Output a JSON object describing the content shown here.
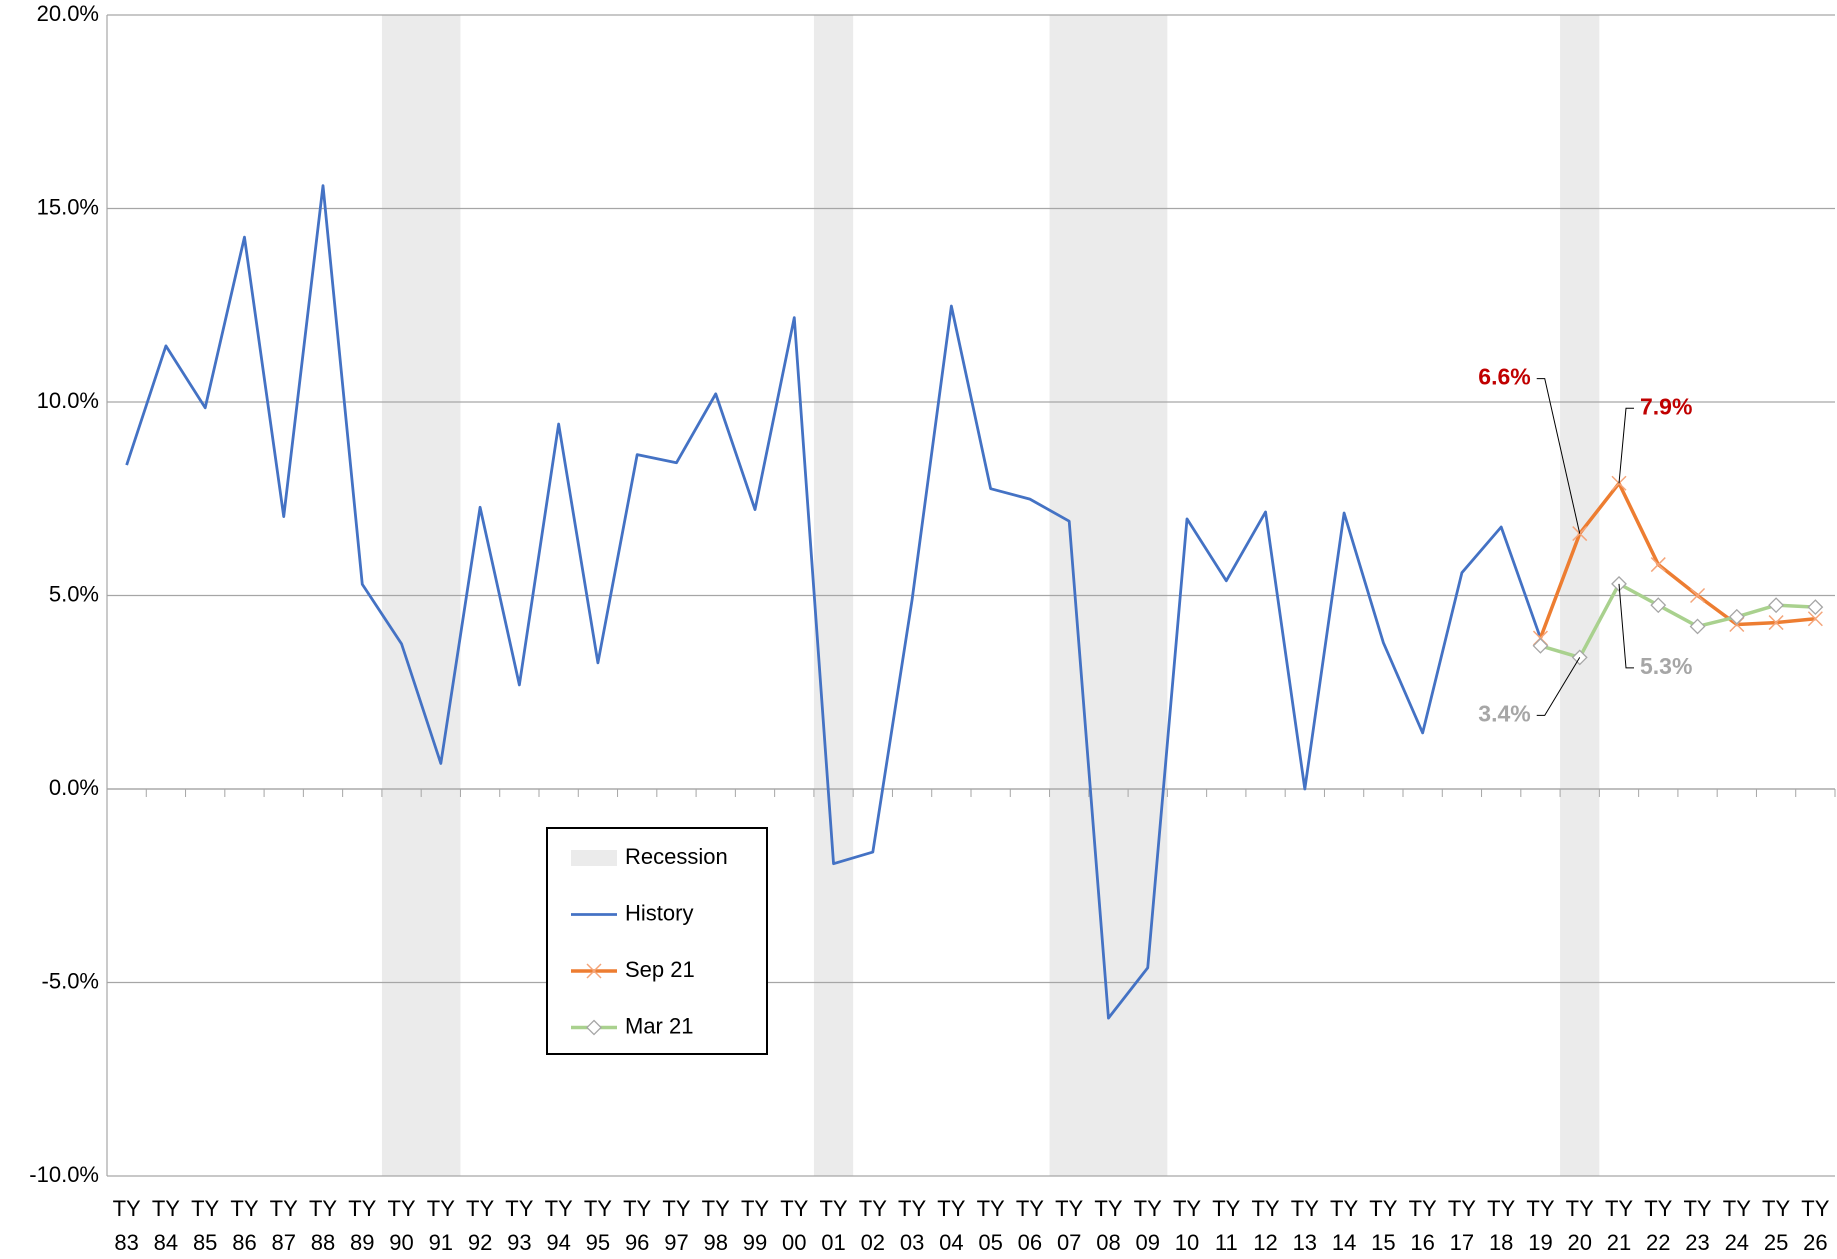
{
  "chart_data": {
    "type": "line",
    "categories": [
      "TY 83",
      "TY 84",
      "TY 85",
      "TY 86",
      "TY 87",
      "TY 88",
      "TY 89",
      "TY 90",
      "TY 91",
      "TY 92",
      "TY 93",
      "TY 94",
      "TY 95",
      "TY 96",
      "TY 97",
      "TY 98",
      "TY 99",
      "TY 00",
      "TY 01",
      "TY 02",
      "TY 03",
      "TY 04",
      "TY 05",
      "TY 06",
      "TY 07",
      "TY 08",
      "TY 09",
      "TY 10",
      "TY 11",
      "TY 12",
      "TY 13",
      "TY 14",
      "TY 15",
      "TY 16",
      "TY 17",
      "TY 18",
      "TY 19",
      "TY 20",
      "TY 21",
      "TY 22",
      "TY 23",
      "TY 24",
      "TY 25",
      "TY 26"
    ],
    "series": [
      {
        "name": "History",
        "color": "#4472c4",
        "marker": "none",
        "values": [
          8.37,
          11.45,
          9.85,
          14.26,
          7.04,
          15.59,
          5.29,
          3.75,
          0.66,
          7.28,
          2.69,
          9.43,
          3.26,
          8.64,
          8.43,
          10.21,
          7.22,
          12.18,
          -1.93,
          -1.63,
          4.89,
          12.48,
          7.76,
          7.49,
          6.92,
          -5.92,
          -4.62,
          6.98,
          5.38,
          7.16,
          0.0,
          7.13,
          3.78,
          1.45,
          5.59,
          6.77,
          3.9,
          null,
          null,
          null,
          null,
          null,
          null,
          null
        ]
      },
      {
        "name": "Sep 21",
        "color": "#ed7d31",
        "marker": "cross",
        "label_color": "#c00000",
        "values": [
          null,
          null,
          null,
          null,
          null,
          null,
          null,
          null,
          null,
          null,
          null,
          null,
          null,
          null,
          null,
          null,
          null,
          null,
          null,
          null,
          null,
          null,
          null,
          null,
          null,
          null,
          null,
          null,
          null,
          null,
          null,
          null,
          null,
          null,
          null,
          null,
          3.9,
          6.6,
          7.9,
          5.8,
          5.0,
          4.25,
          4.3,
          4.4
        ],
        "value_labels": [
          null,
          null,
          null,
          null,
          null,
          null,
          null,
          null,
          null,
          null,
          null,
          null,
          null,
          null,
          null,
          null,
          null,
          null,
          null,
          null,
          null,
          null,
          null,
          null,
          null,
          null,
          null,
          null,
          null,
          null,
          null,
          null,
          null,
          null,
          null,
          null,
          null,
          "6.6%",
          "7.9%",
          null,
          null,
          null,
          null,
          null
        ]
      },
      {
        "name": "Mar 21",
        "color": "#a9d18e",
        "marker": "diamond",
        "label_color": "#a6a6a6",
        "values": [
          null,
          null,
          null,
          null,
          null,
          null,
          null,
          null,
          null,
          null,
          null,
          null,
          null,
          null,
          null,
          null,
          null,
          null,
          null,
          null,
          null,
          null,
          null,
          null,
          null,
          null,
          null,
          null,
          null,
          null,
          null,
          null,
          null,
          null,
          null,
          null,
          3.7,
          3.4,
          5.3,
          4.75,
          4.2,
          4.45,
          4.75,
          4.7
        ],
        "value_labels": [
          null,
          null,
          null,
          null,
          null,
          null,
          null,
          null,
          null,
          null,
          null,
          null,
          null,
          null,
          null,
          null,
          null,
          null,
          null,
          null,
          null,
          null,
          null,
          null,
          null,
          null,
          null,
          null,
          null,
          null,
          null,
          null,
          null,
          null,
          null,
          null,
          null,
          "3.4%",
          "5.3%",
          null,
          null,
          null,
          null,
          null
        ]
      }
    ],
    "recession_name": "Recession",
    "recession_color": "#ebebeb",
    "recessions": [
      [
        "TY 90",
        "TY 91"
      ],
      [
        "TY 01",
        "TY 01"
      ],
      [
        "TY 07",
        "TY 09"
      ],
      [
        "TY 20",
        "TY 20"
      ]
    ],
    "ylim": [
      -10,
      20
    ],
    "yticks": [
      {
        "value": -10,
        "label": "-10.0%"
      },
      {
        "value": -5,
        "label": "-5.0%"
      },
      {
        "value": 0,
        "label": "0.0%"
      },
      {
        "value": 5,
        "label": "5.0%"
      },
      {
        "value": 10,
        "label": "10.0%"
      },
      {
        "value": 15,
        "label": "15.0%"
      },
      {
        "value": 20,
        "label": "20.0%"
      }
    ],
    "grid": true,
    "legend": "lower-left"
  }
}
